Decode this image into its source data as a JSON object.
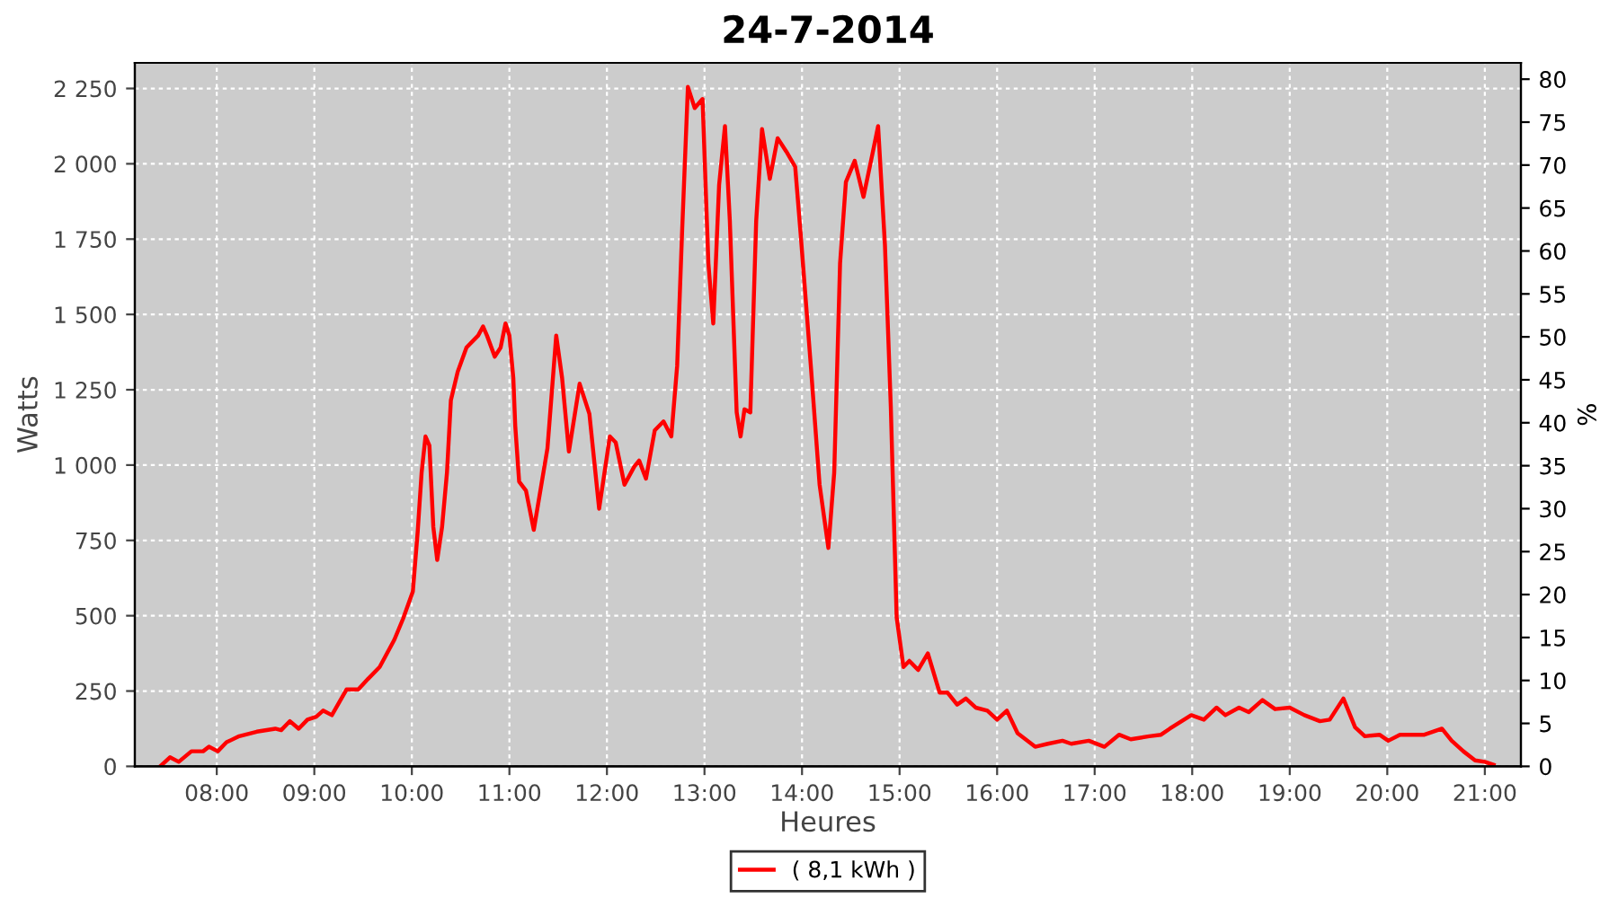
{
  "chart_data": {
    "type": "line",
    "title": "24-7-2014",
    "xlabel": "Heures",
    "ylabel": "Watts",
    "y2label": "%",
    "xlim": [
      7.16,
      21.37
    ],
    "ylim": [
      0,
      2335
    ],
    "y2lim": [
      0,
      81.9
    ],
    "xticks": [
      {
        "value": 8,
        "label": "08:00"
      },
      {
        "value": 9,
        "label": "09:00"
      },
      {
        "value": 10,
        "label": "10:00"
      },
      {
        "value": 11,
        "label": "11:00"
      },
      {
        "value": 12,
        "label": "12:00"
      },
      {
        "value": 13,
        "label": "13:00"
      },
      {
        "value": 14,
        "label": "14:00"
      },
      {
        "value": 15,
        "label": "15:00"
      },
      {
        "value": 16,
        "label": "16:00"
      },
      {
        "value": 17,
        "label": "17:00"
      },
      {
        "value": 18,
        "label": "18:00"
      },
      {
        "value": 19,
        "label": "19:00"
      },
      {
        "value": 20,
        "label": "20:00"
      },
      {
        "value": 21,
        "label": "21:00"
      }
    ],
    "yticks": [
      0,
      250,
      500,
      750,
      {
        "value": 1000,
        "label": "1 000"
      },
      {
        "value": 1250,
        "label": "1 250"
      },
      {
        "value": 1500,
        "label": "1 500"
      },
      {
        "value": 1750,
        "label": "1 750"
      },
      {
        "value": 2000,
        "label": "2 000"
      },
      {
        "value": 2250,
        "label": "2 250"
      }
    ],
    "y2ticks": [
      0,
      5,
      10,
      15,
      20,
      25,
      30,
      35,
      40,
      45,
      50,
      55,
      60,
      65,
      70,
      75,
      80
    ],
    "grid": true,
    "legend": "bottom",
    "line_style": "solid",
    "series": [
      {
        "name": "( 8,1 kWh )",
        "color": "#ff0000",
        "x": [
          7.42,
          7.52,
          7.61,
          7.74,
          7.86,
          7.92,
          8.01,
          8.1,
          8.23,
          8.41,
          8.6,
          8.66,
          8.75,
          8.84,
          8.93,
          9.02,
          9.09,
          9.18,
          9.33,
          9.45,
          9.55,
          9.67,
          9.82,
          9.91,
          10.01,
          10.06,
          10.1,
          10.14,
          10.18,
          10.22,
          10.26,
          10.31,
          10.36,
          10.4,
          10.47,
          10.56,
          10.68,
          10.73,
          10.77,
          10.85,
          10.91,
          10.96,
          11.0,
          11.04,
          11.06,
          11.1,
          11.17,
          11.25,
          11.39,
          11.48,
          11.54,
          11.61,
          11.72,
          11.82,
          11.92,
          12.03,
          12.09,
          12.18,
          12.28,
          12.33,
          12.4,
          12.49,
          12.58,
          12.66,
          12.72,
          12.77,
          12.83,
          12.9,
          12.98,
          13.04,
          13.09,
          13.15,
          13.21,
          13.26,
          13.33,
          13.37,
          13.41,
          13.47,
          13.53,
          13.59,
          13.67,
          13.75,
          13.84,
          13.93,
          13.99,
          14.09,
          14.18,
          14.27,
          14.33,
          14.39,
          14.45,
          14.54,
          14.63,
          14.72,
          14.78,
          14.85,
          14.91,
          14.97,
          15.04,
          15.1,
          15.19,
          15.29,
          15.41,
          15.49,
          15.59,
          15.68,
          15.78,
          15.9,
          16.0,
          16.1,
          16.21,
          16.39,
          16.52,
          16.67,
          16.76,
          16.94,
          17.1,
          17.25,
          17.37,
          17.56,
          17.68,
          17.77,
          17.99,
          18.12,
          18.25,
          18.34,
          18.48,
          18.58,
          18.72,
          18.85,
          19.0,
          19.15,
          19.31,
          19.41,
          19.55,
          19.67,
          19.77,
          19.92,
          20.01,
          20.13,
          20.38,
          20.56,
          20.66,
          20.78,
          20.9,
          21.0,
          21.09
        ],
        "values": [
          0,
          30,
          15,
          50,
          50,
          65,
          50,
          80,
          100,
          115,
          125,
          120,
          150,
          125,
          155,
          165,
          185,
          170,
          255,
          255,
          290,
          330,
          420,
          490,
          580,
          780,
          975,
          1095,
          1065,
          795,
          685,
          795,
          975,
          1215,
          1310,
          1390,
          1430,
          1460,
          1430,
          1360,
          1390,
          1470,
          1430,
          1290,
          1130,
          945,
          915,
          785,
          1055,
          1430,
          1290,
          1045,
          1270,
          1170,
          855,
          1095,
          1075,
          935,
          995,
          1015,
          955,
          1115,
          1145,
          1095,
          1330,
          1770,
          2255,
          2185,
          2215,
          1670,
          1470,
          1930,
          2125,
          1810,
          1175,
          1095,
          1185,
          1175,
          1810,
          2115,
          1950,
          2085,
          2040,
          1990,
          1750,
          1330,
          935,
          725,
          975,
          1670,
          1940,
          2010,
          1890,
          2030,
          2125,
          1730,
          1195,
          495,
          330,
          350,
          320,
          375,
          245,
          245,
          205,
          225,
          195,
          185,
          155,
          185,
          110,
          65,
          75,
          85,
          75,
          85,
          65,
          105,
          90,
          100,
          105,
          125,
          170,
          155,
          195,
          170,
          195,
          180,
          220,
          190,
          195,
          170,
          150,
          155,
          225,
          130,
          100,
          105,
          85,
          105,
          105,
          125,
          85,
          50,
          20,
          15,
          5
        ]
      }
    ]
  }
}
